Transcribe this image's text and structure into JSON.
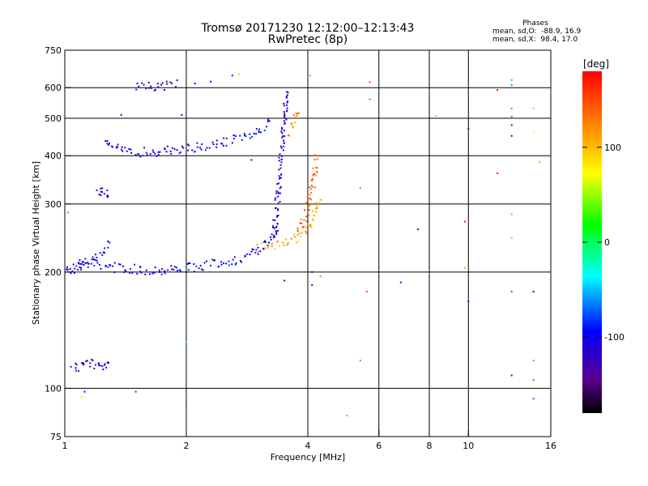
{
  "chart_data": {
    "type": "scatter",
    "title": "Tromsø 20171230 12:12:00–12:13:43",
    "subtitle": "RwPretec (8p)",
    "xlabel": "Frequency [MHz]",
    "ylabel": "Stationary phase Virtual Height [km]",
    "x_scale": "log",
    "y_scale": "log",
    "xlim": [
      1,
      16
    ],
    "ylim": [
      75,
      750
    ],
    "x_ticks": [
      1,
      2,
      4,
      6,
      8,
      10,
      16
    ],
    "x_tick_labels": [
      "1",
      "2",
      "4",
      "6",
      "8",
      "10",
      "16"
    ],
    "x_grid_lines": [
      2,
      4,
      6,
      8,
      10
    ],
    "y_ticks": [
      75,
      100,
      200,
      300,
      400,
      500,
      600,
      750
    ],
    "y_tick_labels": [
      "75",
      "100",
      "200",
      "300",
      "400",
      "500",
      "600",
      "750"
    ],
    "y_grid_lines": [
      100,
      200,
      300,
      400,
      500,
      600
    ],
    "grid": true,
    "phases": {
      "heading": "Phases",
      "o_line": "mean, sd,O:  -88.9, 16.9",
      "x_line": "mean, sd,X:  98.4, 17.0"
    },
    "colorbar": {
      "label": "[deg]",
      "range": [
        -180,
        180
      ],
      "ticks": [
        100,
        0,
        -100
      ],
      "tick_labels": [
        "100",
        "0",
        "-100"
      ]
    },
    "traces": [
      {
        "x": [
          1.0,
          1.2,
          1.4,
          1.6,
          1.8,
          2.0,
          2.2,
          2.5,
          2.8,
          3.0,
          3.2,
          3.35
        ],
        "y": [
          205,
          210,
          204,
          202,
          203,
          205,
          207,
          212,
          218,
          226,
          240,
          265
        ],
        "phase": -100
      },
      {
        "x": [
          1.0,
          1.15,
          1.3
        ],
        "y": [
          198,
          215,
          235
        ],
        "phase": -105
      },
      {
        "x": [
          1.25,
          1.4,
          1.6,
          1.8,
          2.0,
          2.3,
          2.6,
          2.9,
          3.1,
          3.25
        ],
        "y": [
          440,
          410,
          408,
          412,
          418,
          425,
          437,
          456,
          472,
          490
        ],
        "phase": -100
      },
      {
        "x": [
          1.05,
          1.1,
          1.15,
          1.2,
          1.25,
          1.3
        ],
        "y": [
          113,
          114,
          115,
          116,
          115,
          117
        ],
        "phase": -105
      },
      {
        "x": [
          1.2,
          1.25,
          1.28
        ],
        "y": [
          318,
          322,
          315
        ],
        "phase": -110
      },
      {
        "x": [
          1.5,
          1.6,
          1.75,
          1.9
        ],
        "y": [
          598,
          602,
          608,
          612
        ],
        "phase": -110
      },
      {
        "x": [
          3.3,
          3.35,
          3.4,
          3.45,
          3.5,
          3.55
        ],
        "y": [
          250,
          290,
          340,
          410,
          500,
          600
        ],
        "phase": -105
      },
      {
        "x": [
          3.0,
          3.2,
          3.4,
          3.6,
          3.8,
          4.0,
          4.15,
          4.3
        ],
        "y": [
          230,
          232,
          236,
          240,
          247,
          258,
          280,
          310
        ],
        "phase": 110
      },
      {
        "x": [
          3.8,
          3.95,
          4.05,
          4.15,
          4.2
        ],
        "y": [
          260,
          280,
          310,
          350,
          400
        ],
        "phase": 140
      },
      {
        "x": [
          3.6,
          3.7,
          3.8
        ],
        "y": [
          460,
          490,
          520
        ],
        "phase": 125
      }
    ],
    "points": [
      {
        "x": 4.3,
        "y": 195,
        "phase": 120
      },
      {
        "x": 4.1,
        "y": 185,
        "phase": -110
      },
      {
        "x": 3.5,
        "y": 190,
        "phase": -120
      },
      {
        "x": 5.6,
        "y": 178,
        "phase": 150
      },
      {
        "x": 5.7,
        "y": 560,
        "phase": 140
      },
      {
        "x": 5.7,
        "y": 620,
        "phase": 150
      },
      {
        "x": 5.4,
        "y": 118,
        "phase": 130
      },
      {
        "x": 4.1,
        "y": 200,
        "phase": -150
      },
      {
        "x": 6.8,
        "y": 188,
        "phase": -110
      },
      {
        "x": 7.5,
        "y": 258,
        "phase": -130
      },
      {
        "x": 8.3,
        "y": 507,
        "phase": 90
      },
      {
        "x": 9.8,
        "y": 270,
        "phase": 170
      },
      {
        "x": 10.0,
        "y": 470,
        "phase": -140
      },
      {
        "x": 10.0,
        "y": 168,
        "phase": -100
      },
      {
        "x": 9.8,
        "y": 205,
        "phase": 110
      },
      {
        "x": 11.8,
        "y": 592,
        "phase": 175
      },
      {
        "x": 11.8,
        "y": 360,
        "phase": 165
      },
      {
        "x": 12.8,
        "y": 610,
        "phase": -60
      },
      {
        "x": 12.8,
        "y": 628,
        "phase": -50
      },
      {
        "x": 12.8,
        "y": 530,
        "phase": 140
      },
      {
        "x": 12.8,
        "y": 505,
        "phase": 150
      },
      {
        "x": 12.8,
        "y": 480,
        "phase": -130
      },
      {
        "x": 12.8,
        "y": 450,
        "phase": -150
      },
      {
        "x": 12.8,
        "y": 282,
        "phase": 120
      },
      {
        "x": 12.8,
        "y": 245,
        "phase": 110
      },
      {
        "x": 12.8,
        "y": 178,
        "phase": 160
      },
      {
        "x": 12.8,
        "y": 108,
        "phase": -90
      },
      {
        "x": 14.5,
        "y": 530,
        "phase": 100
      },
      {
        "x": 14.5,
        "y": 460,
        "phase": 70
      },
      {
        "x": 14.5,
        "y": 178,
        "phase": -110
      },
      {
        "x": 14.5,
        "y": 118,
        "phase": 130
      },
      {
        "x": 14.5,
        "y": 105,
        "phase": 150
      },
      {
        "x": 14.5,
        "y": 94,
        "phase": -70
      },
      {
        "x": 15.0,
        "y": 385,
        "phase": 110
      },
      {
        "x": 2.0,
        "y": 92,
        "phase": -60
      },
      {
        "x": 2.0,
        "y": 178,
        "phase": 130
      },
      {
        "x": 2.0,
        "y": 132,
        "phase": -40
      },
      {
        "x": 1.02,
        "y": 285,
        "phase": -50
      },
      {
        "x": 1.12,
        "y": 98,
        "phase": -110
      },
      {
        "x": 1.1,
        "y": 95,
        "phase": 80
      },
      {
        "x": 1.5,
        "y": 98,
        "phase": -80
      },
      {
        "x": 2.1,
        "y": 615,
        "phase": -100
      },
      {
        "x": 2.3,
        "y": 622,
        "phase": -110
      },
      {
        "x": 2.6,
        "y": 645,
        "phase": -90
      },
      {
        "x": 2.7,
        "y": 650,
        "phase": 100
      },
      {
        "x": 4.05,
        "y": 645,
        "phase": 120
      },
      {
        "x": 1.95,
        "y": 510,
        "phase": -100
      },
      {
        "x": 1.38,
        "y": 510,
        "phase": -110
      },
      {
        "x": 2.9,
        "y": 390,
        "phase": -140
      },
      {
        "x": 5.4,
        "y": 330,
        "phase": -50
      },
      {
        "x": 5.0,
        "y": 85,
        "phase": 120
      }
    ]
  }
}
